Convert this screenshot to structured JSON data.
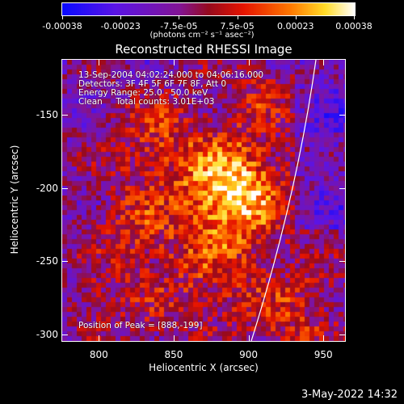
{
  "colorbar": {
    "tick_labels": [
      "-0.00038",
      "-0.00023",
      "-7.5e-05",
      "7.5e-05",
      "0.00023",
      "0.00038"
    ],
    "units_label": "(photons cm⁻² s⁻¹ asec⁻²)",
    "range": [
      -0.00038,
      0.00038
    ]
  },
  "plot": {
    "title": "Reconstructed RHESSI Image",
    "info_lines": [
      "13-Sep-2004 04:02:24.000 to 04:06:16.000",
      "Detectors: 3F 4F 5F 6F 7F 8F, Att 0",
      "Energy Range: 25.0 - 50.0 keV",
      "Clean     Total counts: 3.01E+03"
    ],
    "peak_label": "Position of Peak = [888,-199]",
    "xlabel": "Heliocentric X (arcsec)",
    "ylabel": "Heliocentric Y (arcsec)",
    "x_ticks": [
      "800",
      "850",
      "900",
      "950"
    ],
    "y_ticks": [
      "-150",
      "-200",
      "-250",
      "-300"
    ]
  },
  "chart_data": {
    "type": "heatmap",
    "title": "Reconstructed RHESSI Image",
    "xlabel": "Heliocentric X (arcsec)",
    "ylabel": "Heliocentric Y (arcsec)",
    "xlim": [
      775,
      965
    ],
    "ylim": [
      -305,
      -112
    ],
    "x_ticks": [
      800,
      850,
      900,
      950
    ],
    "y_ticks": [
      -150,
      -200,
      -250,
      -300
    ],
    "peak": {
      "x": 888,
      "y": -199
    },
    "colorscale": "blue-purple-red-yellow-white",
    "value_range": [
      -0.00038,
      0.00038
    ]
  },
  "footer": {
    "date": "3-May-2022 14:32"
  }
}
